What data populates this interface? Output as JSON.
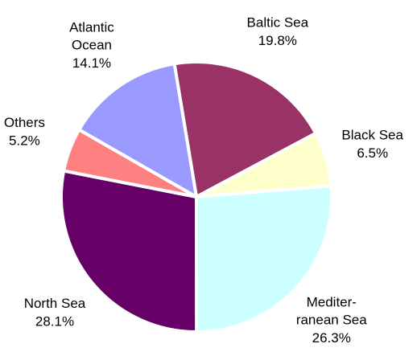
{
  "chart_data": {
    "type": "pie",
    "categories": [
      "Baltic Sea",
      "Black Sea",
      "Mediter-\nranean Sea",
      "North Sea",
      "Others",
      "Atlantic\nOcean"
    ],
    "values": [
      19.8,
      6.5,
      26.3,
      28.1,
      5.2,
      14.1
    ],
    "value_labels": [
      "19.8%",
      "6.5%",
      "26.3%",
      "28.1%",
      "5.2%",
      "14.1%"
    ],
    "colors": [
      "#993366",
      "#ffffcc",
      "#ccffff",
      "#660066",
      "#ff8080",
      "#9999ff"
    ]
  }
}
